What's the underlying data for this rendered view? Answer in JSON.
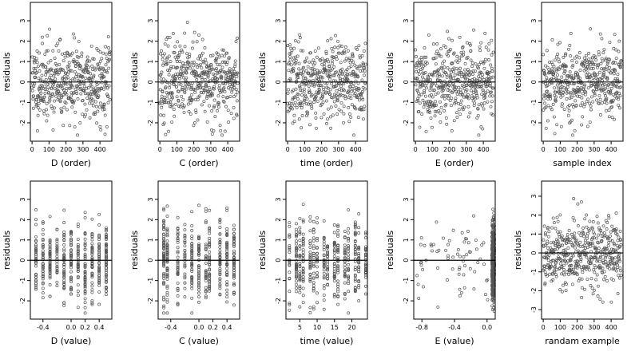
{
  "chart_data": [
    {
      "type": "scatter",
      "xlabel": "D (order)",
      "ylabel": "residuals",
      "xlim": [
        -10,
        470
      ],
      "ylim": [
        -2.9,
        3.9
      ],
      "xticks": [
        0,
        100,
        200,
        300,
        400
      ],
      "xtick_labels": [
        "0",
        "100",
        "200",
        "300",
        "400"
      ],
      "yticks": [
        -2,
        -1,
        0,
        1,
        2,
        3
      ],
      "ytick_labels": [
        "-2",
        "-1",
        "0",
        "1",
        "2",
        "3"
      ],
      "hline": 0,
      "points": {
        "gen": "order",
        "n": 460,
        "seed": 11
      }
    },
    {
      "type": "scatter",
      "xlabel": "C (order)",
      "ylabel": "residuals",
      "xlim": [
        -10,
        470
      ],
      "ylim": [
        -2.9,
        3.9
      ],
      "xticks": [
        0,
        100,
        200,
        300,
        400
      ],
      "xtick_labels": [
        "0",
        "100",
        "200",
        "300",
        "400"
      ],
      "yticks": [
        -2,
        -1,
        0,
        1,
        2,
        3
      ],
      "ytick_labels": [
        "-2",
        "-1",
        "0",
        "1",
        "2",
        "3"
      ],
      "hline": 0,
      "points": {
        "gen": "order",
        "n": 460,
        "seed": 23
      }
    },
    {
      "type": "scatter",
      "xlabel": "time (order)",
      "ylabel": "residuals",
      "xlim": [
        -10,
        470
      ],
      "ylim": [
        -2.9,
        3.9
      ],
      "xticks": [
        0,
        100,
        200,
        300,
        400
      ],
      "xtick_labels": [
        "0",
        "100",
        "200",
        "300",
        "400"
      ],
      "yticks": [
        -2,
        -1,
        0,
        1,
        2,
        3
      ],
      "ytick_labels": [
        "-2",
        "-1",
        "0",
        "1",
        "2",
        "3"
      ],
      "hline": 0,
      "points": {
        "gen": "order",
        "n": 460,
        "seed": 37
      }
    },
    {
      "type": "scatter",
      "xlabel": "E (order)",
      "ylabel": "residuals",
      "xlim": [
        -10,
        470
      ],
      "ylim": [
        -2.9,
        3.9
      ],
      "xticks": [
        0,
        100,
        200,
        300,
        400
      ],
      "xtick_labels": [
        "0",
        "100",
        "200",
        "300",
        "400"
      ],
      "yticks": [
        -2,
        -1,
        0,
        1,
        2,
        3
      ],
      "ytick_labels": [
        "-2",
        "-1",
        "0",
        "1",
        "2",
        "3"
      ],
      "hline": 0,
      "points": {
        "gen": "order",
        "n": 460,
        "seed": 41
      }
    },
    {
      "type": "scatter",
      "xlabel": "sample index",
      "ylabel": "residuals",
      "xlim": [
        -10,
        470
      ],
      "ylim": [
        -2.9,
        3.9
      ],
      "xticks": [
        0,
        100,
        200,
        300,
        400
      ],
      "xtick_labels": [
        "0",
        "100",
        "200",
        "300",
        "400"
      ],
      "yticks": [
        -2,
        -1,
        0,
        1,
        2,
        3
      ],
      "ytick_labels": [
        "-2",
        "-1",
        "0",
        "1",
        "2",
        "3"
      ],
      "hline": 0,
      "points": {
        "gen": "order",
        "n": 460,
        "seed": 53
      }
    },
    {
      "type": "scatter",
      "xlabel": "D (value)",
      "ylabel": "residuals",
      "xlim": [
        -0.58,
        0.58
      ],
      "ylim": [
        -2.9,
        3.9
      ],
      "xticks": [
        -0.4,
        0,
        0.2,
        0.4
      ],
      "xtick_labels": [
        "-0.4",
        "0.0",
        "0.2",
        "0.4"
      ],
      "yticks": [
        -2,
        -1,
        0,
        1,
        2,
        3
      ],
      "ytick_labels": [
        "-2",
        "-1",
        "0",
        "1",
        "2",
        "3"
      ],
      "hline": 0,
      "points": {
        "gen": "discrete",
        "n": 460,
        "seed": 61,
        "levels": [
          -0.5,
          -0.4,
          -0.3,
          -0.2,
          -0.1,
          0,
          0.1,
          0.2,
          0.3,
          0.4,
          0.5
        ]
      }
    },
    {
      "type": "scatter",
      "xlabel": "C (value)",
      "ylabel": "residuals",
      "xlim": [
        -0.58,
        0.58
      ],
      "ylim": [
        -2.9,
        3.9
      ],
      "xticks": [
        -0.4,
        0,
        0.2,
        0.4
      ],
      "xtick_labels": [
        "-0.4",
        "0.0",
        "0.2",
        "0.4"
      ],
      "yticks": [
        -2,
        -1,
        0,
        1,
        2,
        3
      ],
      "ytick_labels": [
        "-2",
        "-1",
        "0",
        "1",
        "2",
        "3"
      ],
      "hline": 0,
      "points": {
        "gen": "discrete",
        "n": 460,
        "seed": 67,
        "levels": [
          -0.5,
          -0.45,
          -0.3,
          -0.2,
          -0.1,
          0,
          0.1,
          0.15,
          0.3,
          0.4,
          0.5
        ]
      }
    },
    {
      "type": "scatter",
      "xlabel": "time (value)",
      "ylabel": "residuals",
      "xlim": [
        1,
        24.5
      ],
      "ylim": [
        -2.9,
        3.9
      ],
      "xticks": [
        5,
        10,
        15,
        20
      ],
      "xtick_labels": [
        "5",
        "10",
        "15",
        "20"
      ],
      "yticks": [
        -2,
        -1,
        0,
        1,
        2,
        3
      ],
      "ytick_labels": [
        "-2",
        "-1",
        "0",
        "1",
        "2",
        "3"
      ],
      "hline": 0,
      "points": {
        "gen": "discrete",
        "n": 460,
        "seed": 71,
        "levels": [
          2,
          4,
          5,
          6,
          8,
          9,
          10,
          12,
          13,
          15,
          16,
          18,
          19,
          21,
          22,
          24
        ]
      }
    },
    {
      "type": "scatter",
      "xlabel": "E (value)",
      "ylabel": "residuals",
      "xlim": [
        -0.9,
        0.1
      ],
      "ylim": [
        -2.9,
        3.9
      ],
      "xticks": [
        -0.8,
        -0.4,
        0
      ],
      "xtick_labels": [
        "-0.8",
        "-0.4",
        "0.0"
      ],
      "yticks": [
        -2,
        -1,
        0,
        1,
        2,
        3
      ],
      "ytick_labels": [
        "-2",
        "-1",
        "0",
        "1",
        "2",
        "3"
      ],
      "hline": 0,
      "points": {
        "gen": "skew",
        "n": 460,
        "seed": 79
      }
    },
    {
      "type": "scatter",
      "xlabel": "randam example",
      "ylabel": "residuals",
      "xlim": [
        -10,
        470
      ],
      "ylim": [
        -3.5,
        3.8
      ],
      "xticks": [
        0,
        100,
        200,
        300,
        400
      ],
      "xtick_labels": [
        "0",
        "100",
        "200",
        "300",
        "400"
      ],
      "yticks": [
        -3,
        -2,
        -1,
        0,
        1,
        2,
        3
      ],
      "ytick_labels": [
        "-3",
        "-2",
        "-1",
        "0",
        "1",
        "2",
        "3"
      ],
      "hline": 0,
      "points": {
        "gen": "order",
        "n": 460,
        "seed": 89
      }
    }
  ]
}
